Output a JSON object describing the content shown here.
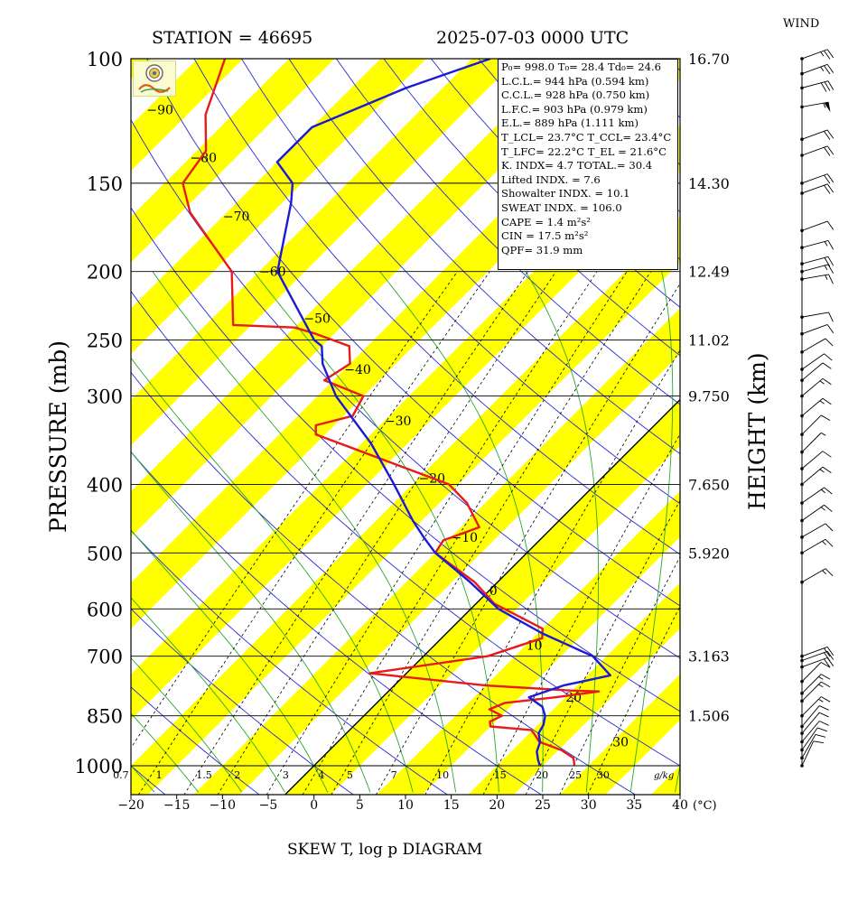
{
  "header": {
    "station": "STATION = 46695",
    "datetime": "2025-07-03 0000 UTC",
    "wind_title": "WIND",
    "footer_title": "SKEW T, log p DIAGRAM",
    "pressure_label": "PRESSURE (mb)",
    "height_label": "HEIGHT (km)"
  },
  "params": [
    {
      "label": "P₀= 998.0 T₀= 28.4 Td₀= 24.6"
    },
    {
      "label": "L.C.L.= 944 hPa (0.594 km)"
    },
    {
      "label": "C.C.L.= 928 hPa (0.750 km)"
    },
    {
      "label": "L.F.C.= 903 hPa (0.979 km)"
    },
    {
      "label": "E.L.= 889 hPa (1.111 km)"
    },
    {
      "label": "T_LCL= 23.7°C T_CCL= 23.4°C"
    },
    {
      "label": "T_LFC= 22.2°C  T_EL = 21.6°C"
    },
    {
      "label": "K. INDX= 4.7  TOTAL.= 30.4"
    },
    {
      "label": "Lifted INDX. =   7.6"
    },
    {
      "label": "Showalter INDX. =   10.1"
    },
    {
      "label": "SWEAT INDX. =  106.0"
    },
    {
      "label": "CAPE =     1.4 m²s²"
    },
    {
      "label": "CIN  =    17.5 m²s²"
    },
    {
      "label": "QPF= 31.9 mm"
    }
  ],
  "colors": {
    "temperature": "#e81b1b",
    "dewpoint": "#1b1bd6",
    "isotherm_band": "#ffff00",
    "dry_adiabat": "#2b2bd0",
    "moist_adiabat": "#2aa82a",
    "mixing_ratio": "#000000"
  },
  "chart_data": {
    "type": "line",
    "title": "SKEW T, log p DIAGRAM",
    "xlabel": "(°C)",
    "ylabel": "PRESSURE (mb)",
    "y2label": "HEIGHT (km)",
    "xlim": [
      -20,
      40
    ],
    "ylim": [
      1000,
      100
    ],
    "y_scale": "log",
    "x_ticks": [
      -20,
      -15,
      -10,
      -5,
      0,
      5,
      10,
      15,
      20,
      25,
      30,
      35,
      40
    ],
    "x_tick_labels": [
      "−20",
      "−15",
      "−10",
      "−5",
      "0",
      "5",
      "10",
      "15",
      "20",
      "25",
      "30",
      "35",
      "40"
    ],
    "x_unit_label": "(°C)",
    "pressure_levels": [
      {
        "p": 100,
        "label": "100",
        "height": "16.70"
      },
      {
        "p": 150,
        "label": "150",
        "height": "14.30"
      },
      {
        "p": 200,
        "label": "200",
        "height": "12.49"
      },
      {
        "p": 250,
        "label": "250",
        "height": "11.02"
      },
      {
        "p": 300,
        "label": "300",
        "height": "9.750"
      },
      {
        "p": 400,
        "label": "400",
        "height": "7.650"
      },
      {
        "p": 500,
        "label": "500",
        "height": "5.920"
      },
      {
        "p": 600,
        "label": "600",
        "height": ""
      },
      {
        "p": 700,
        "label": "700",
        "height": "3.163"
      },
      {
        "p": 850,
        "label": "850",
        "height": "1.506"
      },
      {
        "p": 1000,
        "label": "1000",
        "height": ""
      }
    ],
    "isotherm_labels": [
      {
        "t": -90,
        "p": 118,
        "text": "−90"
      },
      {
        "t": -80,
        "p": 138,
        "text": "−80"
      },
      {
        "t": -70,
        "p": 167,
        "text": "−70"
      },
      {
        "t": -60,
        "p": 200,
        "text": "−60"
      },
      {
        "t": -50,
        "p": 233,
        "text": "−50"
      },
      {
        "t": -40,
        "p": 275,
        "text": "−40"
      },
      {
        "t": -30,
        "p": 325,
        "text": "−30"
      },
      {
        "t": -20,
        "p": 392,
        "text": "−20"
      },
      {
        "t": -10,
        "p": 475,
        "text": "−10"
      },
      {
        "t": 0,
        "p": 565,
        "text": "0"
      },
      {
        "t": 10,
        "p": 675,
        "text": "10"
      },
      {
        "t": 20,
        "p": 800,
        "text": "20"
      },
      {
        "t": 30,
        "p": 925,
        "text": "30"
      }
    ],
    "mixing_ratio_labels": [
      {
        "w": 0.7,
        "text": "0.7"
      },
      {
        "w": 1,
        "text": "1"
      },
      {
        "w": 1.5,
        "text": "1.5"
      },
      {
        "w": 2,
        "text": "2"
      },
      {
        "w": 3,
        "text": "3"
      },
      {
        "w": 4,
        "text": "4"
      },
      {
        "w": 5,
        "text": "5"
      },
      {
        "w": 7,
        "text": "7"
      },
      {
        "w": 10,
        "text": "10"
      },
      {
        "w": 15,
        "text": "15"
      },
      {
        "w": 20,
        "text": "20"
      },
      {
        "w": 25,
        "text": "25"
      },
      {
        "w": 30,
        "text": "30"
      }
    ],
    "mixing_ratio_unit": "g/kg",
    "series": [
      {
        "name": "temperature",
        "points": [
          {
            "p": 998,
            "t": 28.4
          },
          {
            "p": 975,
            "t": 27.5
          },
          {
            "p": 950,
            "t": 25.3
          },
          {
            "p": 925,
            "t": 22.0
          },
          {
            "p": 900,
            "t": 20.5
          },
          {
            "p": 890,
            "t": 19.8
          },
          {
            "p": 880,
            "t": 15.0
          },
          {
            "p": 866,
            "t": 14.4
          },
          {
            "p": 850,
            "t": 15.1
          },
          {
            "p": 832,
            "t": 13.0
          },
          {
            "p": 815,
            "t": 14.0
          },
          {
            "p": 800,
            "t": 19.0
          },
          {
            "p": 785,
            "t": 23.0
          },
          {
            "p": 783,
            "t": 20.0
          },
          {
            "p": 770,
            "t": 10.0
          },
          {
            "p": 740,
            "t": -4.0
          },
          {
            "p": 700,
            "t": 7.0
          },
          {
            "p": 660,
            "t": 11.0
          },
          {
            "p": 640,
            "t": 10.0
          },
          {
            "p": 590,
            "t": 2.0
          },
          {
            "p": 550,
            "t": -2.5
          },
          {
            "p": 500,
            "t": -10.0
          },
          {
            "p": 480,
            "t": -10.5
          },
          {
            "p": 460,
            "t": -8.0
          },
          {
            "p": 425,
            "t": -12.0
          },
          {
            "p": 400,
            "t": -16.0
          },
          {
            "p": 340,
            "t": -36.0
          },
          {
            "p": 330,
            "t": -37.0
          },
          {
            "p": 320,
            "t": -34.0
          },
          {
            "p": 300,
            "t": -35.0
          },
          {
            "p": 285,
            "t": -41.0
          },
          {
            "p": 270,
            "t": -40.0
          },
          {
            "p": 255,
            "t": -42.0
          },
          {
            "p": 245,
            "t": -47.0
          },
          {
            "p": 240,
            "t": -50.0
          },
          {
            "p": 238,
            "t": -57.0
          },
          {
            "p": 200,
            "t": -63.0
          },
          {
            "p": 165,
            "t": -74.0
          },
          {
            "p": 150,
            "t": -78.0
          },
          {
            "p": 135,
            "t": -79.0
          },
          {
            "p": 120,
            "t": -83.0
          },
          {
            "p": 100,
            "t": -87.0
          }
        ]
      },
      {
        "name": "dewpoint",
        "points": [
          {
            "p": 998,
            "t": 24.6
          },
          {
            "p": 980,
            "t": 23.8
          },
          {
            "p": 955,
            "t": 22.8
          },
          {
            "p": 925,
            "t": 22.1
          },
          {
            "p": 900,
            "t": 21.0
          },
          {
            "p": 875,
            "t": 20.6
          },
          {
            "p": 850,
            "t": 19.8
          },
          {
            "p": 825,
            "t": 18.5
          },
          {
            "p": 800,
            "t": 16.0
          },
          {
            "p": 770,
            "t": 18.5
          },
          {
            "p": 745,
            "t": 22.5
          },
          {
            "p": 700,
            "t": 18.5
          },
          {
            "p": 650,
            "t": 10.5
          },
          {
            "p": 600,
            "t": 3.0
          },
          {
            "p": 550,
            "t": -3.0
          },
          {
            "p": 500,
            "t": -10.0
          },
          {
            "p": 475,
            "t": -13.0
          },
          {
            "p": 450,
            "t": -16.0
          },
          {
            "p": 400,
            "t": -22.0
          },
          {
            "p": 350,
            "t": -29.0
          },
          {
            "p": 300,
            "t": -38.0
          },
          {
            "p": 270,
            "t": -43.0
          },
          {
            "p": 255,
            "t": -45.0
          },
          {
            "p": 250,
            "t": -46.5
          },
          {
            "p": 200,
            "t": -58.0
          },
          {
            "p": 160,
            "t": -64.0
          },
          {
            "p": 150,
            "t": -66.0
          },
          {
            "p": 140,
            "t": -70.0
          },
          {
            "p": 125,
            "t": -70.0
          },
          {
            "p": 110,
            "t": -64.0
          },
          {
            "p": 100,
            "t": -58.0
          }
        ]
      }
    ],
    "wind_barbs": [
      {
        "p": 100,
        "dir": 70,
        "spd": 25
      },
      {
        "p": 105,
        "dir": 70,
        "spd": 25
      },
      {
        "p": 110,
        "dir": 75,
        "spd": 30
      },
      {
        "p": 117,
        "dir": 80,
        "spd": 55
      },
      {
        "p": 130,
        "dir": 70,
        "spd": 20
      },
      {
        "p": 137,
        "dir": 70,
        "spd": 20
      },
      {
        "p": 150,
        "dir": 70,
        "spd": 20
      },
      {
        "p": 155,
        "dir": 70,
        "spd": 20
      },
      {
        "p": 175,
        "dir": 70,
        "spd": 10
      },
      {
        "p": 185,
        "dir": 75,
        "spd": 15
      },
      {
        "p": 195,
        "dir": 75,
        "spd": 20
      },
      {
        "p": 200,
        "dir": 75,
        "spd": 15
      },
      {
        "p": 205,
        "dir": 80,
        "spd": 15
      },
      {
        "p": 232,
        "dir": 80,
        "spd": 10
      },
      {
        "p": 245,
        "dir": 70,
        "spd": 10
      },
      {
        "p": 260,
        "dir": 60,
        "spd": 10
      },
      {
        "p": 275,
        "dir": 55,
        "spd": 10
      },
      {
        "p": 285,
        "dir": 50,
        "spd": 10
      },
      {
        "p": 300,
        "dir": 50,
        "spd": 15
      },
      {
        "p": 320,
        "dir": 50,
        "spd": 15
      },
      {
        "p": 340,
        "dir": 45,
        "spd": 10
      },
      {
        "p": 360,
        "dir": 45,
        "spd": 5
      },
      {
        "p": 380,
        "dir": 50,
        "spd": 10
      },
      {
        "p": 400,
        "dir": 50,
        "spd": 15
      },
      {
        "p": 425,
        "dir": 55,
        "spd": 15
      },
      {
        "p": 450,
        "dir": 55,
        "spd": 15
      },
      {
        "p": 475,
        "dir": 60,
        "spd": 10
      },
      {
        "p": 500,
        "dir": 60,
        "spd": 15
      },
      {
        "p": 550,
        "dir": 60,
        "spd": 15
      },
      {
        "p": 700,
        "dir": 70,
        "spd": 20
      },
      {
        "p": 710,
        "dir": 70,
        "spd": 20
      },
      {
        "p": 725,
        "dir": 70,
        "spd": 20
      },
      {
        "p": 760,
        "dir": 45,
        "spd": 10
      },
      {
        "p": 790,
        "dir": 45,
        "spd": 15
      },
      {
        "p": 810,
        "dir": 45,
        "spd": 15
      },
      {
        "p": 850,
        "dir": 45,
        "spd": 15
      },
      {
        "p": 880,
        "dir": 40,
        "spd": 10
      },
      {
        "p": 900,
        "dir": 40,
        "spd": 10
      },
      {
        "p": 925,
        "dir": 40,
        "spd": 10
      },
      {
        "p": 950,
        "dir": 35,
        "spd": 10
      },
      {
        "p": 975,
        "dir": 30,
        "spd": 10
      },
      {
        "p": 1000,
        "dir": 25,
        "spd": 10
      }
    ]
  }
}
